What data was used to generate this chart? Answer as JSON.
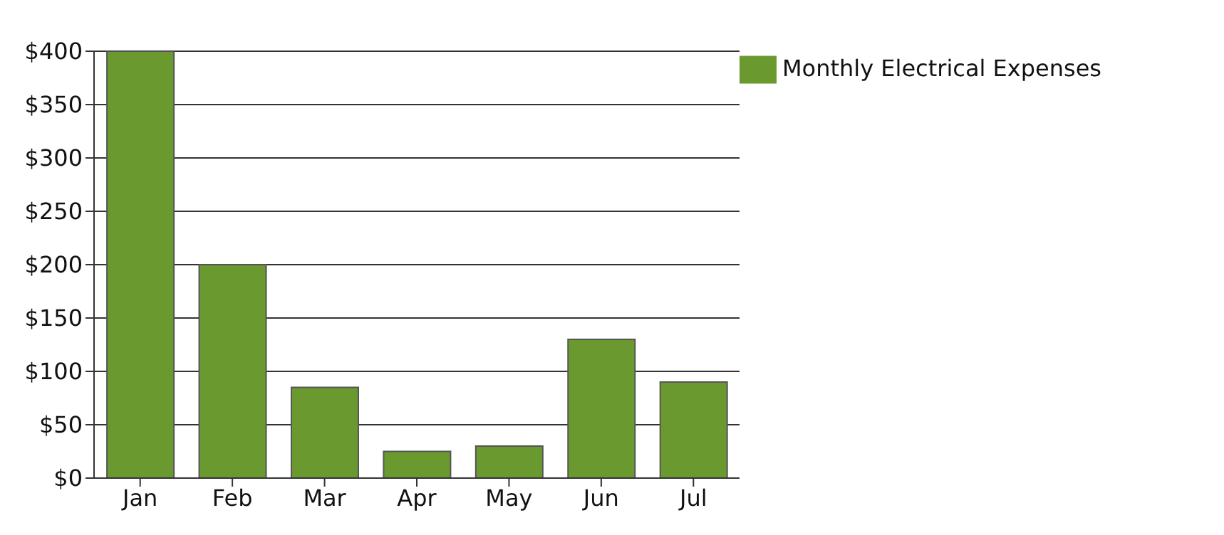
{
  "chart_data": {
    "type": "bar",
    "categories": [
      "Jan",
      "Feb",
      "Mar",
      "Apr",
      "May",
      "Jun",
      "Jul"
    ],
    "series": [
      {
        "name": "Monthly Electrical Expenses",
        "color": "#6a9a2f",
        "values": [
          400,
          200,
          85,
          25,
          30,
          130,
          90
        ]
      }
    ],
    "ylim": [
      0,
      400
    ],
    "yticks": [
      {
        "value": 0,
        "label": "$0"
      },
      {
        "value": 50,
        "label": "$50"
      },
      {
        "value": 100,
        "label": "$100"
      },
      {
        "value": 150,
        "label": "$150"
      },
      {
        "value": 200,
        "label": "$200"
      },
      {
        "value": 250,
        "label": "$250"
      },
      {
        "value": 300,
        "label": "$300"
      },
      {
        "value": 350,
        "label": "$350"
      },
      {
        "value": 400,
        "label": "$400"
      }
    ],
    "grid": "y",
    "legend": "top right"
  }
}
